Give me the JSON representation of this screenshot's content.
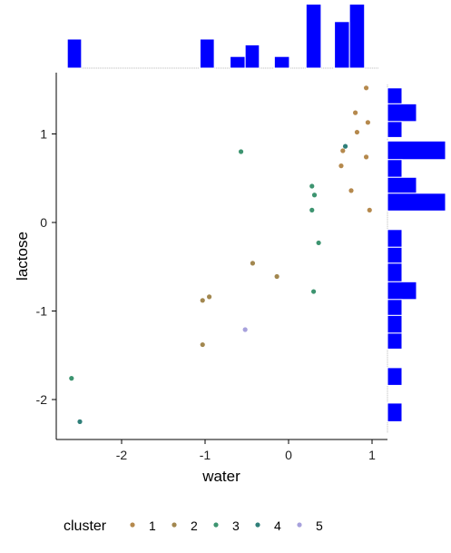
{
  "chart_data": {
    "type": "scatter",
    "subtype": "scatter with marginal histograms",
    "xlabel": "water",
    "ylabel": "lactose",
    "xlim": [
      -2.65,
      1.12
    ],
    "ylim": [
      -2.42,
      1.7
    ],
    "xticks": [
      -2,
      -1,
      0,
      1
    ],
    "yticks": [
      -2,
      -1,
      0,
      1
    ],
    "grid": false,
    "legend": {
      "title": "cluster",
      "position": "bottom"
    },
    "colors": {
      "1": "#b5894d",
      "2": "#a2874f",
      "3": "#3d9470",
      "4": "#2f7f79",
      "5": "#a7a1dc",
      "histogram": "#0000ff"
    },
    "series": [
      {
        "name": "1",
        "color": "#b5894d",
        "points": [
          {
            "x": 0.93,
            "y": 1.52
          },
          {
            "x": 0.8,
            "y": 1.24
          },
          {
            "x": 0.95,
            "y": 1.13
          },
          {
            "x": 0.82,
            "y": 1.02
          },
          {
            "x": 0.65,
            "y": 0.81
          },
          {
            "x": 0.93,
            "y": 0.74
          },
          {
            "x": 0.63,
            "y": 0.64
          },
          {
            "x": 0.75,
            "y": 0.36
          },
          {
            "x": 0.97,
            "y": 0.14
          }
        ]
      },
      {
        "name": "2",
        "color": "#a2874f",
        "points": [
          {
            "x": -0.43,
            "y": -0.46
          },
          {
            "x": -0.14,
            "y": -0.61
          },
          {
            "x": -0.95,
            "y": -0.84
          },
          {
            "x": -1.03,
            "y": -0.88
          },
          {
            "x": -1.03,
            "y": -1.38
          }
        ]
      },
      {
        "name": "3",
        "color": "#3d9470",
        "points": [
          {
            "x": -0.57,
            "y": 0.8
          },
          {
            "x": 0.28,
            "y": 0.41
          },
          {
            "x": 0.31,
            "y": 0.31
          },
          {
            "x": 0.28,
            "y": 0.14
          },
          {
            "x": 0.36,
            "y": -0.23
          },
          {
            "x": 0.3,
            "y": -0.78
          },
          {
            "x": -2.6,
            "y": -1.76
          }
        ]
      },
      {
        "name": "4",
        "color": "#2f7f79",
        "points": [
          {
            "x": 0.68,
            "y": 0.86
          },
          {
            "x": -2.5,
            "y": -2.25
          }
        ]
      },
      {
        "name": "5",
        "color": "#a7a1dc",
        "points": [
          {
            "x": -0.52,
            "y": -1.21
          }
        ]
      }
    ],
    "top_histogram": {
      "variable": "water",
      "bins": [
        {
          "from": -2.65,
          "to": -2.48,
          "count": 1
        },
        {
          "from": -1.06,
          "to": -0.89,
          "count": 1
        },
        {
          "from": -0.7,
          "to": -0.52,
          "count": 0.4
        },
        {
          "from": -0.52,
          "to": -0.35,
          "count": 0.8
        },
        {
          "from": -0.17,
          "to": 0.01,
          "count": 0.4
        },
        {
          "from": 0.21,
          "to": 0.39,
          "count": 2.2
        },
        {
          "from": 0.55,
          "to": 0.73,
          "count": 1.6
        },
        {
          "from": 0.73,
          "to": 0.91,
          "count": 2.2
        }
      ]
    },
    "right_histogram": {
      "variable": "lactose",
      "bins": [
        {
          "from": 1.34,
          "to": 1.52,
          "count": 1
        },
        {
          "from": 1.14,
          "to": 1.34,
          "count": 2
        },
        {
          "from": 0.96,
          "to": 1.14,
          "count": 1
        },
        {
          "from": 0.71,
          "to": 0.92,
          "count": 4
        },
        {
          "from": 0.51,
          "to": 0.71,
          "count": 1
        },
        {
          "from": 0.33,
          "to": 0.51,
          "count": 2
        },
        {
          "from": 0.13,
          "to": 0.33,
          "count": 4
        },
        {
          "from": -0.28,
          "to": -0.08,
          "count": 1
        },
        {
          "from": -0.46,
          "to": -0.28,
          "count": 1
        },
        {
          "from": -0.67,
          "to": -0.46,
          "count": 1
        },
        {
          "from": -0.87,
          "to": -0.67,
          "count": 2
        },
        {
          "from": -1.05,
          "to": -0.87,
          "count": 1
        },
        {
          "from": -1.25,
          "to": -1.05,
          "count": 1
        },
        {
          "from": -1.43,
          "to": -1.25,
          "count": 1
        },
        {
          "from": -1.84,
          "to": -1.64,
          "count": 1
        },
        {
          "from": -2.25,
          "to": -2.04,
          "count": 1
        }
      ]
    }
  }
}
